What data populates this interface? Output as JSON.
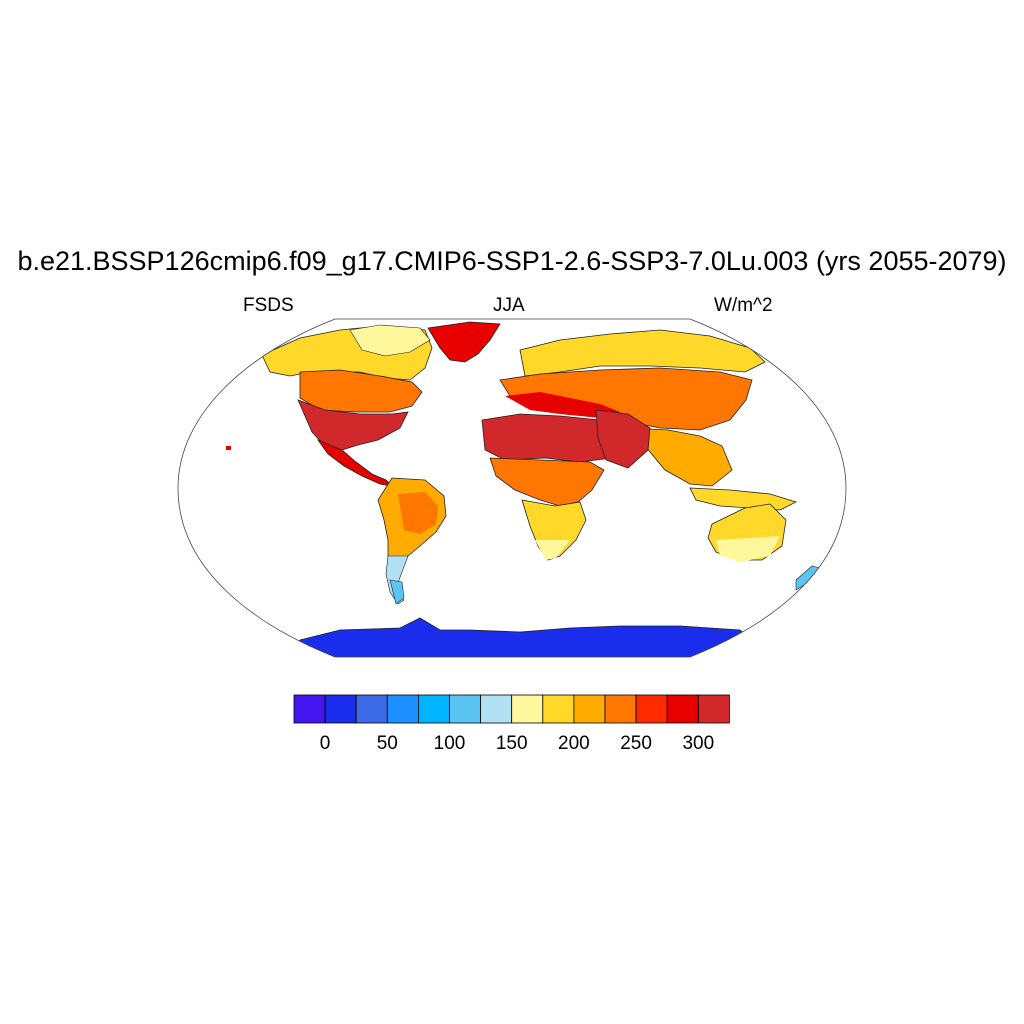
{
  "title": "b.e21.BSSP126cmip6.f09_g17.CMIP6-SSP1-2.6-SSP3-7.0Lu.003 (yrs 2055-2079)",
  "left_string": "FSDS",
  "center_string": "JJA",
  "right_string": "W/m^2",
  "colorbar": {
    "colors": [
      "#4316f0",
      "#1a2ded",
      "#3c6be5",
      "#1e90ff",
      "#00b4ff",
      "#5cc4f2",
      "#b0e0f2",
      "#fff79c",
      "#ffd829",
      "#ffab00",
      "#ff7700",
      "#ff2a00",
      "#e60000",
      "#d1282c"
    ],
    "tick_labels": [
      "0",
      "50",
      "100",
      "150",
      "200",
      "250",
      "300"
    ]
  },
  "map_colors": {
    "ocean": "#ffffff",
    "antarctica": "#1a2ded",
    "greenland": "#e60000"
  }
}
